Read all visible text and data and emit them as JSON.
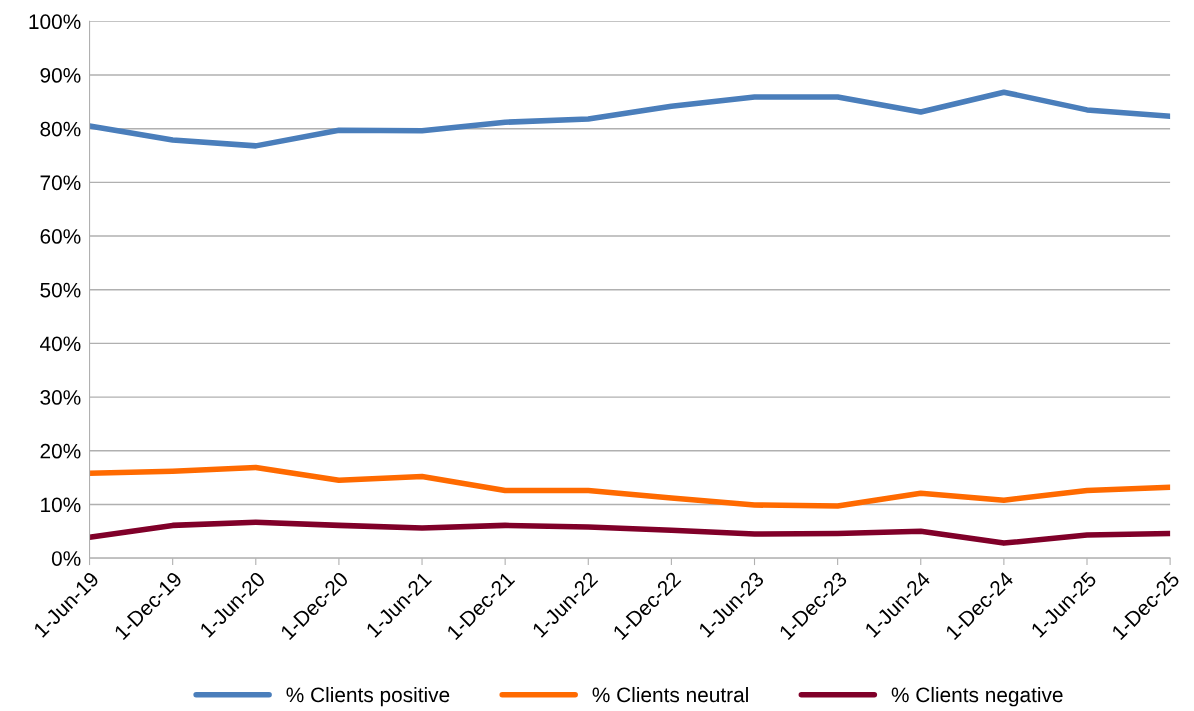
{
  "chart_data": {
    "type": "line",
    "categories": [
      "1-Jun-19",
      "1-Dec-19",
      "1-Jun-20",
      "1-Dec-20",
      "1-Jun-21",
      "1-Dec-21",
      "1-Jun-22",
      "1-Dec-22",
      "1-Jun-23",
      "1-Dec-23",
      "1-Jun-24",
      "1-Dec-24",
      "1-Jun-25",
      "1-Dec-25"
    ],
    "series": [
      {
        "name": "% Clients positive",
        "color": "#4a7ebb",
        "values": [
          80.5,
          77.9,
          76.8,
          79.7,
          79.6,
          81.2,
          81.8,
          84.2,
          85.9,
          85.9,
          83.1,
          86.8,
          83.5,
          82.3
        ]
      },
      {
        "name": "% Clients neutral",
        "color": "#ff6a00",
        "values": [
          15.8,
          16.2,
          16.9,
          14.5,
          15.2,
          12.6,
          12.6,
          11.2,
          9.9,
          9.7,
          12.1,
          10.8,
          12.6,
          13.2
        ]
      },
      {
        "name": "% Clients negative",
        "color": "#800029",
        "values": [
          3.9,
          6.1,
          6.7,
          6.1,
          5.6,
          6.1,
          5.8,
          5.2,
          4.5,
          4.6,
          5.0,
          2.8,
          4.3,
          4.6
        ]
      }
    ],
    "ylim": [
      0,
      100
    ],
    "yticks": [
      {
        "value": 0,
        "label": "0%"
      },
      {
        "value": 10,
        "label": "10%"
      },
      {
        "value": 20,
        "label": "20%"
      },
      {
        "value": 30,
        "label": "30%"
      },
      {
        "value": 40,
        "label": "40%"
      },
      {
        "value": 50,
        "label": "50%"
      },
      {
        "value": 60,
        "label": "60%"
      },
      {
        "value": 70,
        "label": "70%"
      },
      {
        "value": 80,
        "label": "80%"
      },
      {
        "value": 90,
        "label": "90%"
      },
      {
        "value": 100,
        "label": "100%"
      }
    ],
    "grid": "y",
    "legend": "bottom",
    "marker": "none",
    "line_style": "solid"
  }
}
